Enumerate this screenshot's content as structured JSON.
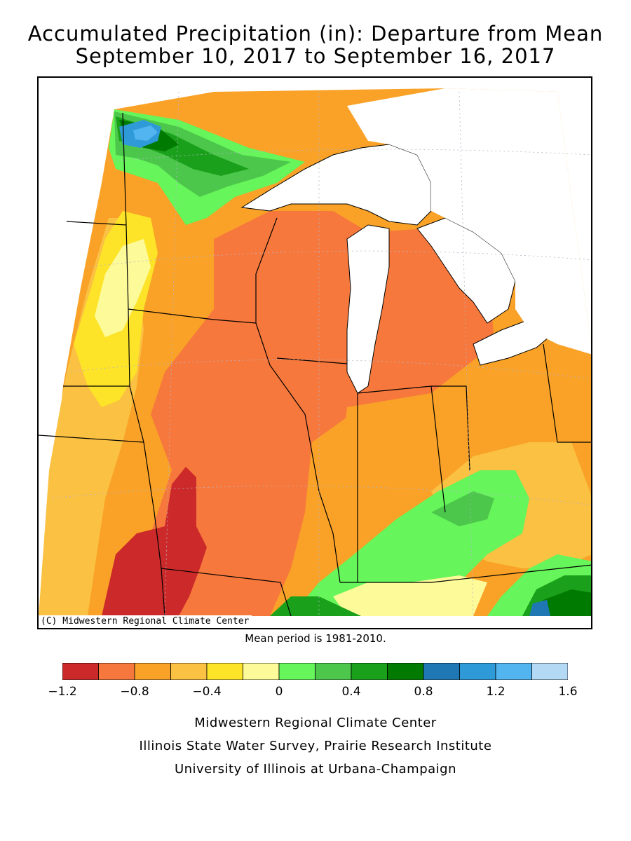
{
  "title": {
    "line1": "Accumulated Precipitation (in): Departure from Mean",
    "line2": "September 10, 2017 to September 16, 2017"
  },
  "map": {
    "copyright": "(C) Midwestern Regional Climate Center",
    "mean_period_note": "Mean period is 1981-2010.",
    "colors": {
      "lake": "#ffffff",
      "border": "#000000"
    }
  },
  "legend": {
    "bins": [
      {
        "range": "-1.2 to -1.0",
        "color": "#cc2a2a"
      },
      {
        "range": "-1.0 to -0.8",
        "color": "#f7783c"
      },
      {
        "range": "-0.8 to -0.6",
        "color": "#f9a227"
      },
      {
        "range": "-0.6 to -0.4",
        "color": "#fbc142"
      },
      {
        "range": "-0.4 to -0.2",
        "color": "#fde428"
      },
      {
        "range": "-0.2 to 0",
        "color": "#fdfa9a"
      },
      {
        "range": "0 to 0.2",
        "color": "#66f55a"
      },
      {
        "range": "0.2 to 0.4",
        "color": "#4cc74c"
      },
      {
        "range": "0.4 to 0.6",
        "color": "#1aa01a"
      },
      {
        "range": "0.6 to 0.8",
        "color": "#007a00"
      },
      {
        "range": "0.8 to 1.0",
        "color": "#1f78b4"
      },
      {
        "range": "1.0 to 1.2",
        "color": "#2e9ad8"
      },
      {
        "range": "1.2 to 1.4",
        "color": "#52b5ef"
      },
      {
        "range": "1.4 to 1.6",
        "color": "#b4d9f5"
      }
    ],
    "tick_labels": [
      "-1.2",
      "-0.8",
      "-0.4",
      "0",
      "0.4",
      "0.8",
      "1.2",
      "1.6"
    ]
  },
  "credits": {
    "line1": "Midwestern Regional Climate Center",
    "line2": "Illinois State Water Survey, Prairie Research Institute",
    "line3": "University of Illinois at Urbana-Champaign"
  }
}
